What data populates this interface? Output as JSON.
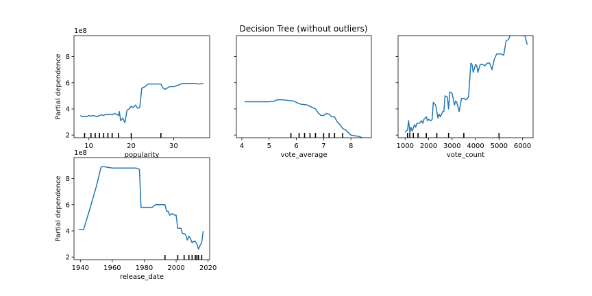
{
  "figure": {
    "suptitle": "Decision Tree (without outliers)"
  },
  "chart_data": [
    {
      "type": "line",
      "xlabel": "popularity",
      "ylabel": "Partial dependence",
      "y_offset_label": "1e8",
      "xlim": [
        6.5,
        38.5
      ],
      "ylim": [
        1.8,
        9.6
      ],
      "xticks": [
        10,
        20,
        30
      ],
      "yticks": [
        2,
        4,
        6,
        8
      ],
      "show_yticklabels": true,
      "deciles": [
        9,
        10.5,
        11.5,
        12.5,
        13.5,
        14.5,
        15.5,
        17,
        20,
        27
      ],
      "x": [
        8,
        8.5,
        9,
        9.5,
        10,
        10.5,
        11,
        11.5,
        12,
        12.5,
        13,
        13.5,
        14,
        14.5,
        15,
        15.5,
        16,
        16.5,
        17,
        17.2,
        17.5,
        18,
        18.5,
        19,
        19.5,
        20,
        20.5,
        21,
        21.5,
        22,
        22.5,
        23,
        24,
        25,
        26,
        27,
        27.5,
        28,
        29,
        30,
        31,
        32,
        33,
        34,
        35,
        36,
        37
      ],
      "y": [
        3.5,
        3.4,
        3.45,
        3.4,
        3.5,
        3.45,
        3.5,
        3.45,
        3.4,
        3.5,
        3.55,
        3.5,
        3.6,
        3.55,
        3.6,
        3.55,
        3.65,
        3.6,
        3.5,
        3.8,
        3.1,
        3.3,
        2.95,
        3.9,
        4.0,
        4.2,
        4.1,
        4.3,
        4.05,
        4.1,
        5.6,
        5.65,
        5.9,
        5.9,
        5.9,
        5.9,
        5.6,
        5.5,
        5.7,
        5.7,
        5.8,
        5.95,
        5.95,
        5.95,
        5.95,
        5.9,
        5.95
      ]
    },
    {
      "type": "line",
      "xlabel": "vote_average",
      "ylabel": "",
      "y_offset_label": "",
      "xlim": [
        3.8,
        8.75
      ],
      "ylim": [
        1.8,
        9.6
      ],
      "xticks": [
        4,
        5,
        6,
        7,
        8
      ],
      "yticks": [
        2,
        4,
        6,
        8
      ],
      "show_yticklabels": false,
      "deciles": [
        5.8,
        6.1,
        6.3,
        6.5,
        6.7,
        7.0,
        7.2,
        7.4,
        7.7
      ],
      "x": [
        4.1,
        4.5,
        5.0,
        5.2,
        5.3,
        5.5,
        5.7,
        5.9,
        6.0,
        6.1,
        6.2,
        6.4,
        6.5,
        6.6,
        6.7,
        6.8,
        6.9,
        7.0,
        7.1,
        7.2,
        7.3,
        7.4,
        7.5,
        7.6,
        7.7,
        7.8,
        8.0,
        8.3,
        8.5
      ],
      "y": [
        4.55,
        4.55,
        4.55,
        4.6,
        4.7,
        4.7,
        4.65,
        4.6,
        4.5,
        4.4,
        4.35,
        4.3,
        4.2,
        4.1,
        4.0,
        3.7,
        3.5,
        3.5,
        3.65,
        3.6,
        3.4,
        3.4,
        3.0,
        2.8,
        2.5,
        2.4,
        2.0,
        1.9,
        1.7
      ]
    },
    {
      "type": "line",
      "xlabel": "vote_count",
      "ylabel": "",
      "y_offset_label": "",
      "xlim": [
        700,
        6450
      ],
      "ylim": [
        1.8,
        9.6
      ],
      "xticks": [
        1000,
        2000,
        3000,
        4000,
        5000,
        6000
      ],
      "yticks": [
        2,
        4,
        6,
        8
      ],
      "show_yticklabels": false,
      "deciles": [
        1100,
        1200,
        1350,
        1550,
        1900,
        2350,
        2850,
        3500,
        5000
      ],
      "x": [
        1000,
        1100,
        1150,
        1200,
        1250,
        1300,
        1400,
        1450,
        1500,
        1600,
        1700,
        1750,
        1800,
        1900,
        1950,
        2000,
        2100,
        2150,
        2200,
        2300,
        2400,
        2450,
        2500,
        2600,
        2650,
        2700,
        2800,
        2850,
        2900,
        3000,
        3100,
        3150,
        3200,
        3300,
        3400,
        3500,
        3600,
        3700,
        3800,
        3850,
        3900,
        4000,
        4050,
        4100,
        4200,
        4300,
        4400,
        4500,
        4600,
        4700,
        4800,
        4900,
        5000,
        5100,
        5200,
        5300,
        5400,
        5500,
        5600,
        5700,
        5800,
        6000,
        6100,
        6200
      ],
      "y": [
        2.2,
        2.4,
        3.1,
        2.2,
        2.6,
        2.3,
        2.8,
        2.6,
        2.9,
        2.9,
        3.1,
        2.9,
        3.2,
        3.4,
        3.1,
        3.2,
        3.1,
        3.2,
        4.5,
        4.3,
        3.3,
        3.6,
        3.4,
        3.8,
        3.8,
        5.0,
        4.9,
        4.0,
        5.3,
        5.2,
        4.3,
        4.6,
        4.5,
        3.8,
        4.8,
        4.8,
        4.7,
        4.9,
        7.5,
        7.4,
        6.8,
        7.4,
        7.3,
        6.8,
        7.4,
        7.4,
        7.3,
        7.5,
        7.5,
        7.0,
        7.8,
        8.2,
        8.2,
        8.2,
        8.1,
        9.2,
        9.3,
        9.7,
        9.7,
        9.6,
        9.7,
        9.6,
        9.6,
        8.9
      ]
    },
    {
      "type": "line",
      "xlabel": "release_date",
      "ylabel": "Partial dependence",
      "y_offset_label": "1e8",
      "xlim": [
        1936,
        2021
      ],
      "ylim": [
        1.8,
        9.6
      ],
      "xticks": [
        1940,
        1960,
        1980,
        2000,
        2020
      ],
      "yticks": [
        2,
        4,
        6,
        8
      ],
      "show_yticklabels": true,
      "deciles": [
        1993,
        2001,
        2005,
        2008,
        2010,
        2012,
        2013,
        2014,
        2016
      ],
      "x": [
        1939,
        1942,
        1946,
        1950,
        1953,
        1955,
        1960,
        1965,
        1970,
        1975,
        1977,
        1978,
        1980,
        1985,
        1987,
        1990,
        1993,
        1994,
        1995,
        1996,
        1997,
        1998,
        1999,
        2000,
        2001,
        2003,
        2004,
        2005,
        2006,
        2007,
        2008,
        2009,
        2010,
        2011,
        2012,
        2013,
        2014,
        2015,
        2016,
        2017
      ],
      "y": [
        4.1,
        4.1,
        5.7,
        7.4,
        8.9,
        8.9,
        8.8,
        8.8,
        8.8,
        8.8,
        8.7,
        5.8,
        5.8,
        5.8,
        6.0,
        6.0,
        6.0,
        5.5,
        5.5,
        5.2,
        5.3,
        5.3,
        5.2,
        5.2,
        4.2,
        4.2,
        3.8,
        3.8,
        3.7,
        3.3,
        3.6,
        3.4,
        3.1,
        3.2,
        3.2,
        3.0,
        2.6,
        2.9,
        3.1,
        4.0
      ]
    }
  ]
}
